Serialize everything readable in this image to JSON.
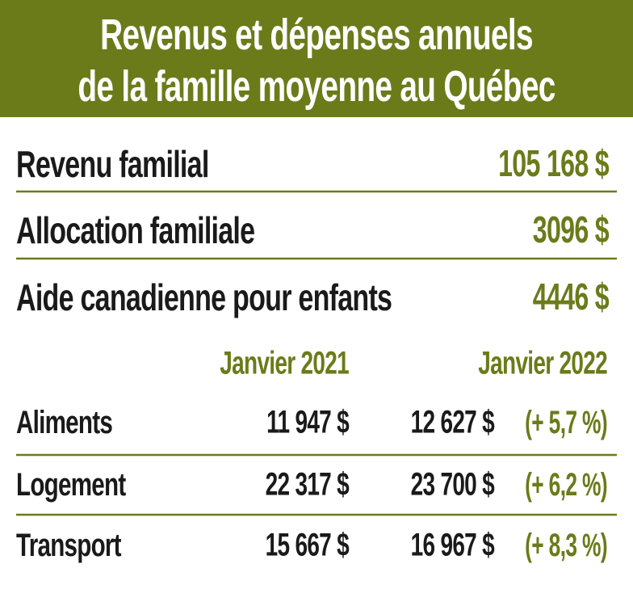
{
  "header": {
    "title": [
      "Revenus et dépenses annuels",
      "de la famille moyenne au Québec"
    ]
  },
  "summary": [
    {
      "label": "Revenu familial",
      "value": "105 168 $"
    },
    {
      "label": "Allocation familiale",
      "value": "3096 $"
    },
    {
      "label": "Aide canadienne pour enfants",
      "value": "4446 $"
    }
  ],
  "table": {
    "columns": [
      "Janvier 2021",
      "Janvier 2022"
    ],
    "rows": [
      {
        "label": "Aliments",
        "jan2021": "11 947 $",
        "jan2022": "12 627 $",
        "change": "(+ 5,7 %)"
      },
      {
        "label": "Logement",
        "jan2021": "22 317 $",
        "jan2022": "23 700 $",
        "change": "(+ 6,2 %)"
      },
      {
        "label": "Transport",
        "jan2021": "15 667 $",
        "jan2022": "16 967 $",
        "change": "(+ 8,3 %)"
      }
    ]
  }
}
